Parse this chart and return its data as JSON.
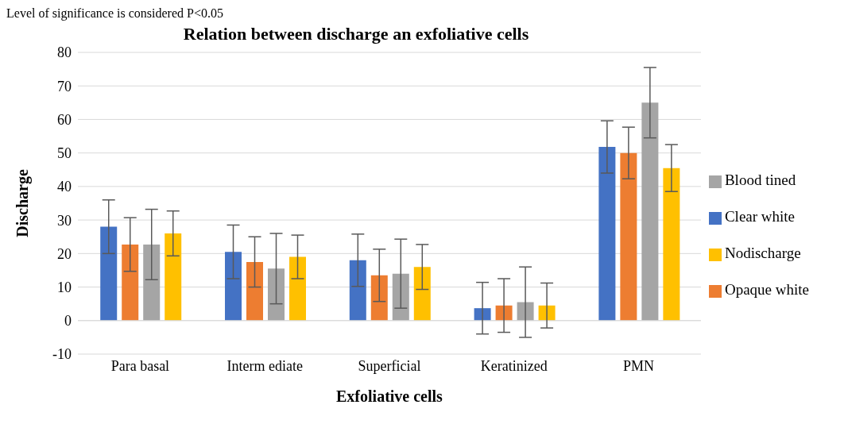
{
  "chart_data": {
    "type": "bar",
    "title": "Relation between discharge an exfoliative cells",
    "xlabel": "Exfoliative cells",
    "ylabel": "Discharge",
    "annotations": [
      "Level of significance is considered P<0.05"
    ],
    "categories": [
      "Para basal",
      "Interm ediate",
      "Superficial",
      "Keratinized",
      "PMN"
    ],
    "series": [
      {
        "name": "Clear white",
        "color": "#4472c4",
        "values": [
          28,
          20.5,
          18,
          3.7,
          51.8
        ],
        "errors": [
          8,
          8,
          7.8,
          7.7,
          7.8
        ]
      },
      {
        "name": "Opaque white",
        "color": "#ed7d31",
        "values": [
          22.7,
          17.5,
          13.5,
          4.5,
          50
        ],
        "errors": [
          8,
          7.5,
          7.8,
          8,
          7.7
        ]
      },
      {
        "name": "Blood tined",
        "color": "#a5a5a5",
        "values": [
          22.7,
          15.5,
          14,
          5.5,
          65
        ],
        "errors": [
          10.5,
          10.5,
          10.3,
          10.5,
          10.5
        ]
      },
      {
        "name": "Nodischarge",
        "color": "#ffc000",
        "values": [
          26,
          19,
          16,
          4.5,
          45.5
        ],
        "errors": [
          6.7,
          6.5,
          6.7,
          6.7,
          7
        ]
      }
    ],
    "ylim": [
      -10,
      80
    ],
    "yticks": [
      -10,
      0,
      10,
      20,
      30,
      40,
      50,
      60,
      70,
      80
    ],
    "grid": "y",
    "legend": "right"
  }
}
